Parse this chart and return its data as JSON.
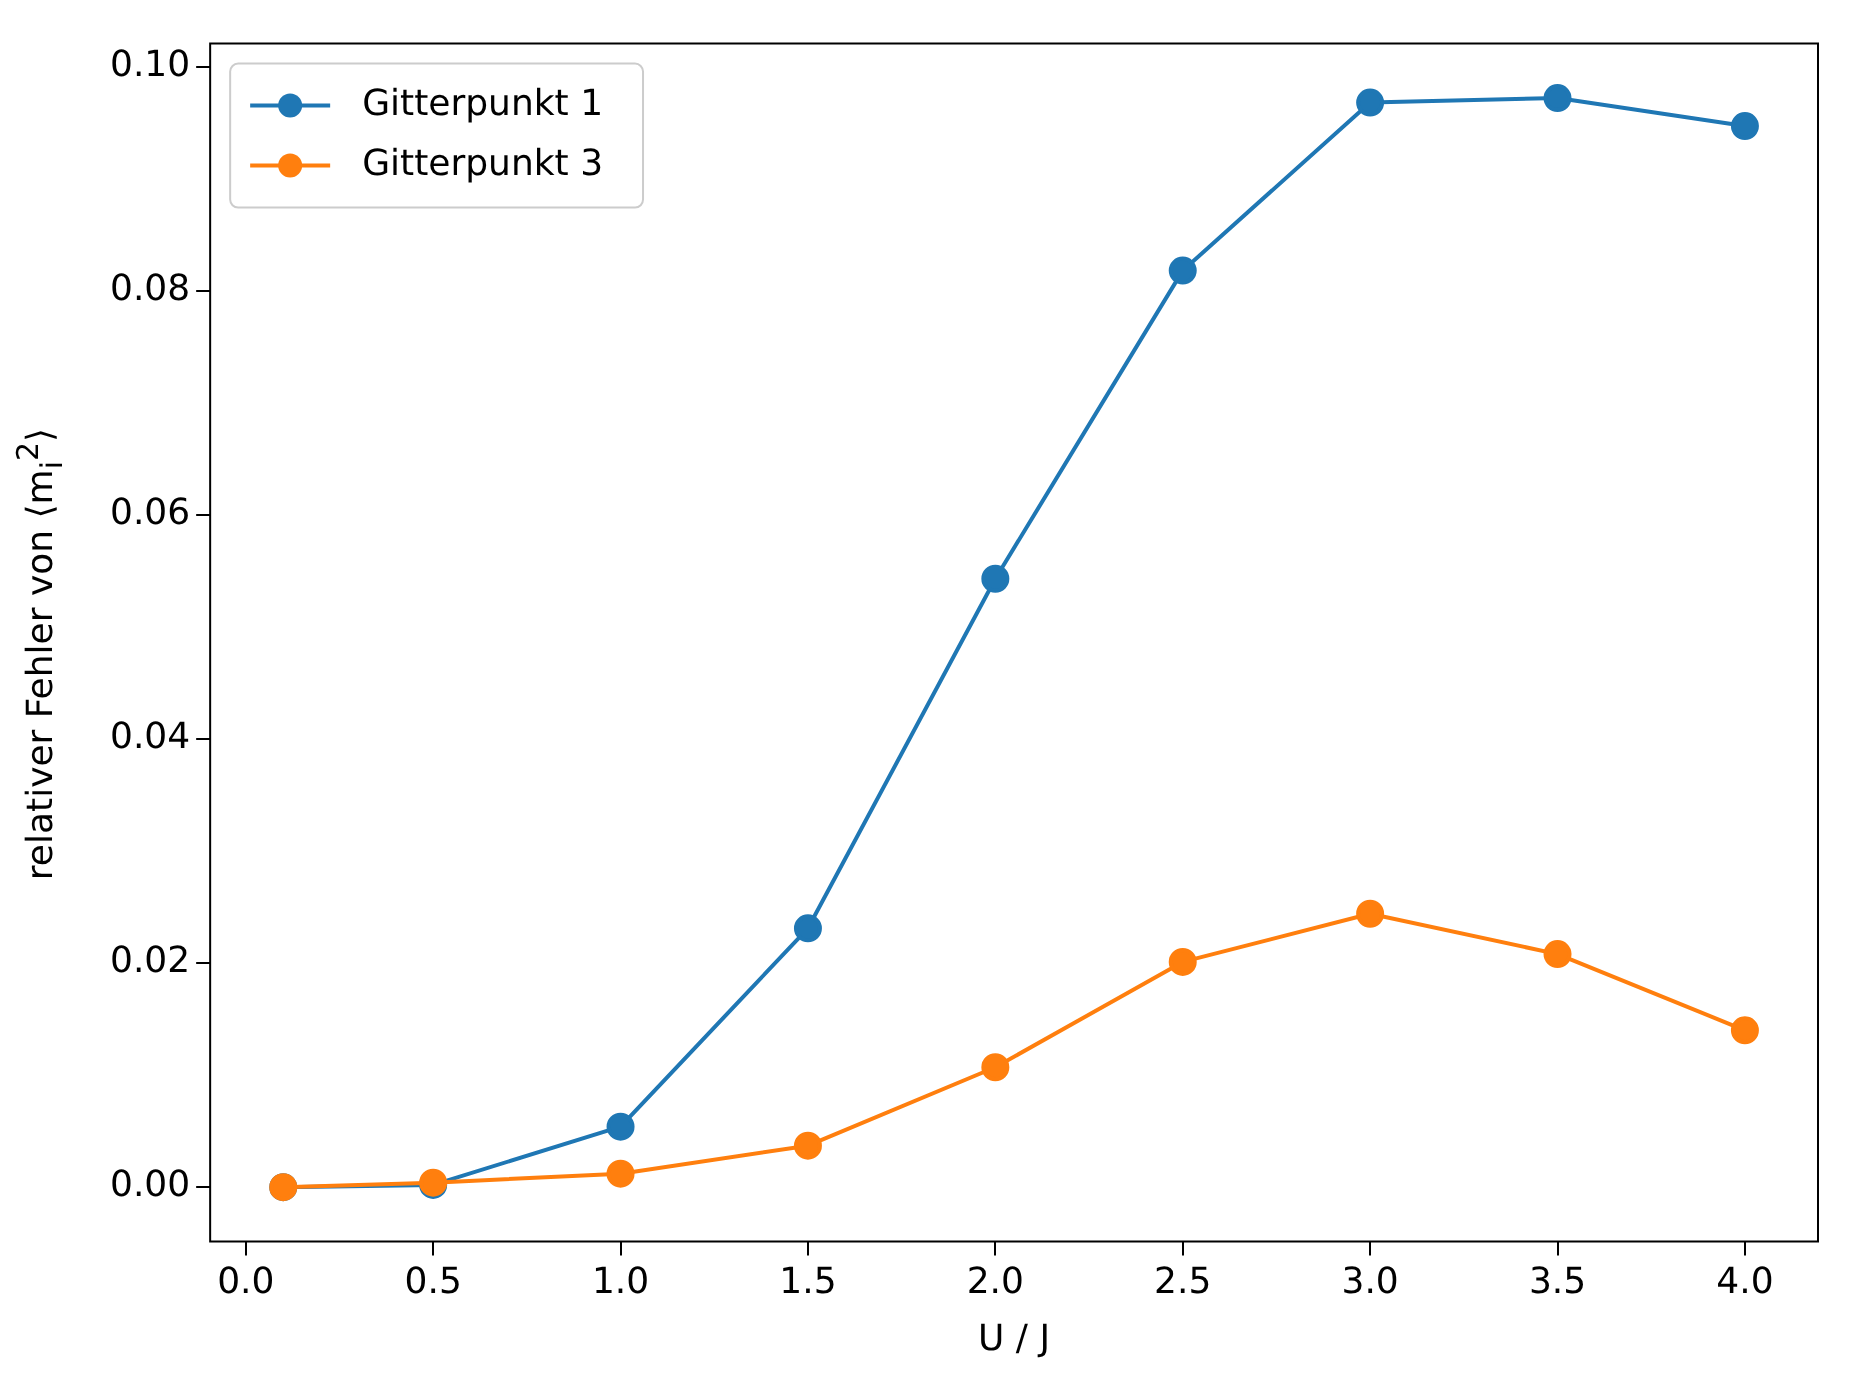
{
  "chart_data": {
    "type": "line",
    "xlabel": "U / J",
    "ylabel": "relativer Fehler von ⟨m$_{i}$$^{2}$⟩",
    "x": [
      0.1,
      0.5,
      1.0,
      1.5,
      2.0,
      2.5,
      3.0,
      3.5,
      4.0
    ],
    "series": [
      {
        "name": "Gitterpunkt 1",
        "color": "#1f77b4",
        "values": [
          0.0,
          0.0002,
          0.0054,
          0.0231,
          0.0543,
          0.0818,
          0.0968,
          0.0972,
          0.0947
        ]
      },
      {
        "name": "Gitterpunkt 3",
        "color": "#ff7f0e",
        "values": [
          0.0,
          0.0004,
          0.0012,
          0.0037,
          0.0107,
          0.0201,
          0.0244,
          0.0208,
          0.014
        ]
      }
    ],
    "xlim": [
      -0.095,
      4.195
    ],
    "xticks": [
      {
        "value": 0,
        "label": "0.0"
      },
      {
        "value": 0.5,
        "label": "0.5"
      },
      {
        "value": 1,
        "label": "1.0"
      },
      {
        "value": 1.5,
        "label": "1.5"
      },
      {
        "value": 2,
        "label": "2.0"
      },
      {
        "value": 2.5,
        "label": "2.5"
      },
      {
        "value": 3,
        "label": "3.0"
      },
      {
        "value": 3.5,
        "label": "3.5"
      },
      {
        "value": 4,
        "label": "4.0"
      }
    ],
    "ylim": [
      -0.00486,
      0.10206
    ],
    "yticks": [
      {
        "value": 0,
        "label": "0.00"
      },
      {
        "value": 0.02,
        "label": "0.02"
      },
      {
        "value": 0.04,
        "label": "0.04"
      },
      {
        "value": 0.06,
        "label": "0.06"
      },
      {
        "value": 0.08,
        "label": "0.08"
      },
      {
        "value": 0.1,
        "label": "0.10"
      }
    ],
    "grid": false,
    "legend": "top left",
    "marker": "circle",
    "line_style": "solid"
  }
}
